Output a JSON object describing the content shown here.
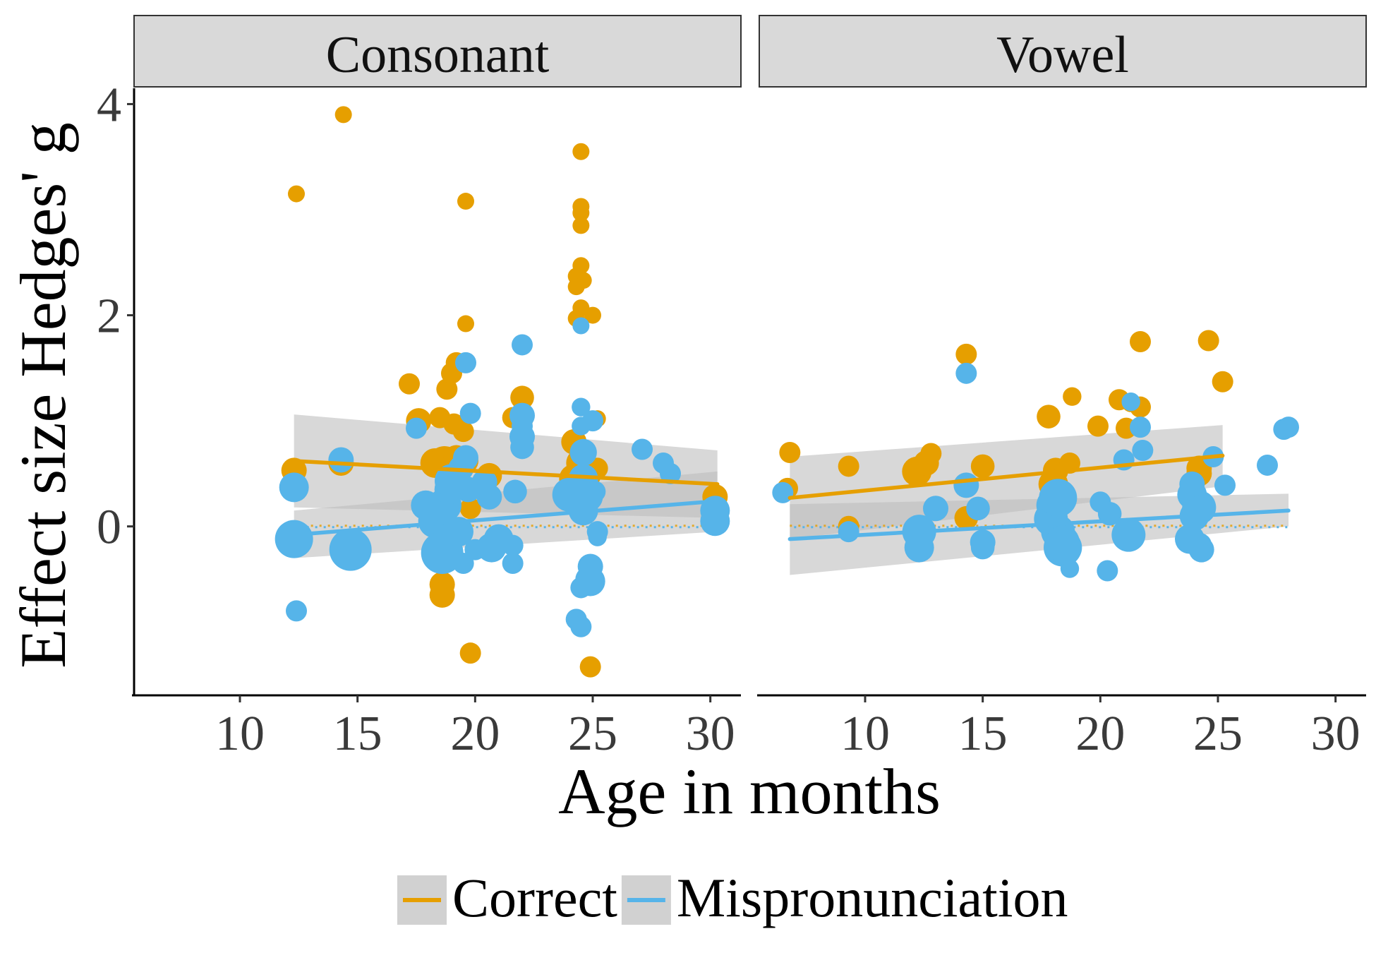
{
  "chart_data": {
    "type": "scatter",
    "xlabel": "Age in months",
    "ylabel": "Effect size Hedges' g",
    "xlim": [
      5.5,
      31.3
    ],
    "ylim": [
      -1.6,
      4.15
    ],
    "xticks": [
      10,
      15,
      20,
      25,
      30
    ],
    "yticks": [
      0,
      2,
      4
    ],
    "grid": false,
    "legend": {
      "position": "bottom",
      "entries": [
        {
          "label": "Correct",
          "color": "#E69F00"
        },
        {
          "label": "Mispronunciation",
          "color": "#56B4E9"
        }
      ]
    },
    "colors": {
      "correct": "#E69F00",
      "mispronunciation": "#56B4E9",
      "ribbon": "#BEBEBE",
      "strip_fill": "#D9D9D9"
    },
    "panels": [
      {
        "title": "Consonant",
        "series": [
          {
            "name": "Correct",
            "points": [
              [
                12.3,
                0.53,
                2
              ],
              [
                12.4,
                3.15,
                1
              ],
              [
                14.4,
                3.9,
                1
              ],
              [
                14.3,
                0.6,
                2
              ],
              [
                17.2,
                1.35,
                1.5
              ],
              [
                17.6,
                1.0,
                2
              ],
              [
                18.5,
                1.03,
                1.5
              ],
              [
                18.8,
                1.3,
                1.5
              ],
              [
                19.0,
                1.45,
                1.5
              ],
              [
                19.2,
                1.55,
                1.5
              ],
              [
                19.1,
                0.97,
                1.5
              ],
              [
                19.5,
                0.9,
                1.5
              ],
              [
                19.6,
                3.08,
                1
              ],
              [
                19.6,
                1.92,
                1
              ],
              [
                18.3,
                0.6,
                2.5
              ],
              [
                18.7,
                0.6,
                3
              ],
              [
                19.2,
                0.65,
                2
              ],
              [
                19.6,
                0.62,
                2
              ],
              [
                20.6,
                0.48,
                2
              ],
              [
                18.6,
                -0.55,
                2
              ],
              [
                18.6,
                -0.65,
                2
              ],
              [
                19.8,
                0.17,
                1.5
              ],
              [
                19.8,
                -1.2,
                1.5
              ],
              [
                21.6,
                1.03,
                1.5
              ],
              [
                22.0,
                1.22,
                1.8
              ],
              [
                22.0,
                1.0,
                1.5
              ],
              [
                24.2,
                0.8,
                2
              ],
              [
                24.5,
                3.55,
                1
              ],
              [
                24.5,
                3.03,
                1
              ],
              [
                24.5,
                2.97,
                1
              ],
              [
                24.5,
                2.85,
                1
              ],
              [
                24.5,
                2.47,
                1
              ],
              [
                24.3,
                2.37,
                1
              ],
              [
                24.6,
                2.33,
                1
              ],
              [
                24.3,
                2.27,
                1
              ],
              [
                24.5,
                2.07,
                1
              ],
              [
                24.3,
                1.97,
                1
              ],
              [
                25.0,
                2.0,
                1
              ],
              [
                25.2,
                1.02,
                1
              ],
              [
                24.5,
                0.6,
                2.5
              ],
              [
                25.2,
                0.55,
                1.5
              ],
              [
                24.2,
                0.45,
                2.5
              ],
              [
                24.8,
                0.48,
                2
              ],
              [
                24.9,
                -1.33,
                1.5
              ],
              [
                30.2,
                0.28,
                2
              ]
            ]
          },
          {
            "name": "Mispronunciation",
            "points": [
              [
                12.3,
                0.37,
                2.5
              ],
              [
                12.3,
                -0.12,
                3.5
              ],
              [
                12.4,
                -0.8,
                1.5
              ],
              [
                14.7,
                -0.22,
                4
              ],
              [
                14.3,
                0.63,
                2
              ],
              [
                17.5,
                0.93,
                1.5
              ],
              [
                17.9,
                0.2,
                2.5
              ],
              [
                18.3,
                0.05,
                3
              ],
              [
                18.6,
                -0.25,
                4
              ],
              [
                18.7,
                0.2,
                3
              ],
              [
                18.9,
                0.35,
                2.5
              ],
              [
                19.0,
                0.43,
                3
              ],
              [
                19.3,
                -0.05,
                2.5
              ],
              [
                19.4,
                0.55,
                2
              ],
              [
                19.5,
                -0.35,
                1.5
              ],
              [
                19.6,
                1.55,
                1.5
              ],
              [
                19.8,
                1.07,
                1.5
              ],
              [
                19.6,
                0.65,
                2
              ],
              [
                19.7,
                0.35,
                2
              ],
              [
                20.0,
                -0.22,
                1.5
              ],
              [
                20.4,
                0.42,
                2
              ],
              [
                20.6,
                0.28,
                2
              ],
              [
                20.7,
                -0.2,
                2.5
              ],
              [
                21.0,
                -0.12,
                2.5
              ],
              [
                21.6,
                -0.18,
                1.5
              ],
              [
                21.6,
                -0.35,
                1.5
              ],
              [
                22.0,
                1.72,
                1.5
              ],
              [
                22.0,
                1.05,
                2
              ],
              [
                22.0,
                0.95,
                1.5
              ],
              [
                22.0,
                0.85,
                2
              ],
              [
                22.0,
                0.75,
                1.8
              ],
              [
                21.7,
                0.33,
                1.8
              ],
              [
                24.0,
                0.3,
                3
              ],
              [
                24.3,
                -0.88,
                1.5
              ],
              [
                24.5,
                -0.95,
                1.5
              ],
              [
                24.5,
                1.9,
                1
              ],
              [
                24.5,
                1.13,
                1.2
              ],
              [
                24.5,
                0.95,
                1.2
              ],
              [
                24.6,
                0.7,
                2.2
              ],
              [
                24.6,
                0.45,
                2.5
              ],
              [
                24.6,
                0.15,
                2.5
              ],
              [
                24.8,
                0.28,
                2.5
              ],
              [
                24.5,
                -0.58,
                1.5
              ],
              [
                24.8,
                -0.5,
                2
              ],
              [
                24.9,
                -0.38,
                2
              ],
              [
                24.9,
                -0.52,
                2.5
              ],
              [
                25.0,
                1.0,
                1.5
              ],
              [
                25.1,
                0.33,
                1.5
              ],
              [
                25.2,
                -0.05,
                1.5
              ],
              [
                25.2,
                -0.1,
                1.2
              ],
              [
                27.1,
                0.73,
                1.5
              ],
              [
                28.0,
                0.6,
                1.5
              ],
              [
                28.3,
                0.5,
                1.5
              ],
              [
                30.2,
                0.15,
                2.5
              ],
              [
                30.2,
                0.05,
                2.5
              ]
            ]
          }
        ],
        "fits": [
          {
            "name": "Correct",
            "x": [
              12.3,
              30.3
            ],
            "y": [
              0.62,
              0.4
            ],
            "lower": [
              0.18,
              0.08
            ],
            "upper": [
              1.06,
              0.72
            ]
          },
          {
            "name": "Mispronunciation",
            "x": [
              12.3,
              30.3
            ],
            "y": [
              -0.08,
              0.24
            ],
            "lower": [
              -0.3,
              -0.05
            ],
            "upper": [
              0.15,
              0.52
            ]
          }
        ]
      },
      {
        "title": "Vowel",
        "series": [
          {
            "name": "Correct",
            "points": [
              [
                6.8,
                0.7,
                1.5
              ],
              [
                6.7,
                0.36,
                1.5
              ],
              [
                9.3,
                0.57,
                1.5
              ],
              [
                9.3,
                0.0,
                1.5
              ],
              [
                12.2,
                0.52,
                2.5
              ],
              [
                12.6,
                0.6,
                2
              ],
              [
                12.8,
                0.69,
                1.5
              ],
              [
                14.3,
                1.63,
                1.5
              ],
              [
                14.3,
                0.08,
                1.8
              ],
              [
                15.0,
                0.57,
                1.8
              ],
              [
                17.8,
                1.04,
                1.8
              ],
              [
                18.0,
                0.4,
                2.5
              ],
              [
                18.1,
                0.53,
                2
              ],
              [
                18.7,
                0.6,
                1.5
              ],
              [
                18.8,
                1.23,
                1.2
              ],
              [
                20.8,
                1.2,
                1.5
              ],
              [
                19.9,
                0.95,
                1.5
              ],
              [
                21.1,
                0.93,
                1.5
              ],
              [
                21.3,
                1.17,
                1.2
              ],
              [
                21.7,
                1.13,
                1.5
              ],
              [
                21.7,
                1.75,
                1.5
              ],
              [
                24.2,
                0.5,
                2
              ],
              [
                24.2,
                0.55,
                2
              ],
              [
                24.6,
                1.76,
                1.5
              ],
              [
                25.2,
                1.37,
                1.5
              ]
            ]
          },
          {
            "name": "Mispronunciation",
            "points": [
              [
                6.5,
                0.32,
                1.5
              ],
              [
                9.3,
                -0.05,
                1.5
              ],
              [
                12.3,
                -0.05,
                3
              ],
              [
                12.3,
                -0.2,
                2.5
              ],
              [
                13.0,
                0.17,
                2
              ],
              [
                14.3,
                1.45,
                1.5
              ],
              [
                14.3,
                0.39,
                2
              ],
              [
                14.8,
                0.17,
                1.8
              ],
              [
                15.0,
                -0.15,
                2
              ],
              [
                15.0,
                -0.2,
                1.8
              ],
              [
                17.9,
                0.07,
                3
              ],
              [
                18.0,
                0.2,
                3
              ],
              [
                18.2,
                0.27,
                3.5
              ],
              [
                18.2,
                -0.05,
                3
              ],
              [
                18.4,
                -0.15,
                3
              ],
              [
                18.4,
                -0.2,
                3.5
              ],
              [
                18.5,
                -0.2,
                3
              ],
              [
                18.7,
                -0.4,
                1.2
              ],
              [
                20.0,
                0.23,
                1.5
              ],
              [
                20.4,
                0.12,
                1.8
              ],
              [
                20.3,
                -0.42,
                1.5
              ],
              [
                21.0,
                0.63,
                1.5
              ],
              [
                21.2,
                -0.08,
                3
              ],
              [
                21.3,
                1.18,
                1.2
              ],
              [
                21.7,
                0.94,
                1.5
              ],
              [
                21.8,
                0.72,
                1.5
              ],
              [
                23.8,
                -0.12,
                2.5
              ],
              [
                23.9,
                0.3,
                2.5
              ],
              [
                24.0,
                0.1,
                2.5
              ],
              [
                24.2,
                0.18,
                3
              ],
              [
                23.9,
                0.4,
                2
              ],
              [
                24.2,
                -0.18,
                2
              ],
              [
                24.3,
                -0.22,
                2
              ],
              [
                24.8,
                0.66,
                1.5
              ],
              [
                25.3,
                0.39,
                1.5
              ],
              [
                27.1,
                0.58,
                1.5
              ],
              [
                27.8,
                0.92,
                1.5
              ],
              [
                28.0,
                0.94,
                1.5
              ]
            ]
          }
        ],
        "fits": [
          {
            "name": "Correct",
            "x": [
              6.8,
              25.2
            ],
            "y": [
              0.27,
              0.67
            ],
            "lower": [
              -0.12,
              0.38
            ],
            "upper": [
              0.66,
              0.96
            ]
          },
          {
            "name": "Mispronunciation",
            "x": [
              6.8,
              28.0
            ],
            "y": [
              -0.12,
              0.15
            ],
            "lower": [
              -0.46,
              0.0
            ],
            "upper": [
              0.21,
              0.31
            ]
          }
        ]
      }
    ]
  }
}
